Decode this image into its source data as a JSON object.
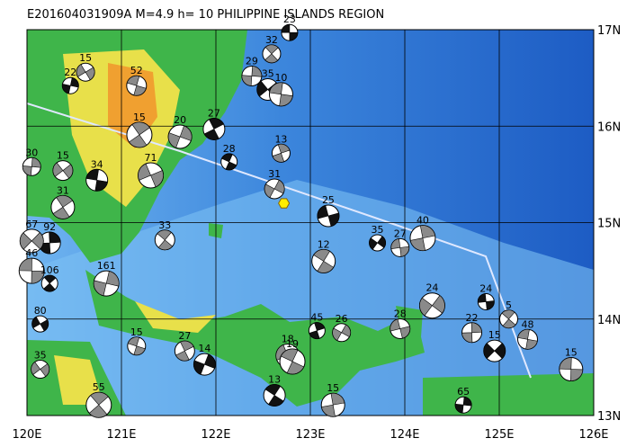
{
  "title": "E201604031909A  M=4.9  h= 10  PHILIPPINE ISLANDS REGION",
  "lon_ticks": [
    {
      "value": 120,
      "label": "120E"
    },
    {
      "value": 121,
      "label": "121E"
    },
    {
      "value": 122,
      "label": "122E"
    },
    {
      "value": 123,
      "label": "123E"
    },
    {
      "value": 124,
      "label": "124E"
    },
    {
      "value": 125,
      "label": "125E"
    },
    {
      "value": 126,
      "label": "126E"
    }
  ],
  "lat_ticks": [
    {
      "value": 17,
      "label": "17N"
    },
    {
      "value": 16,
      "label": "16N"
    },
    {
      "value": 15,
      "label": "15N"
    },
    {
      "value": 14,
      "label": "14N"
    },
    {
      "value": 13,
      "label": "13N"
    }
  ],
  "xlim": [
    120,
    126
  ],
  "ylim": [
    13,
    17
  ],
  "epicenter": {
    "lon": 122.72,
    "lat": 15.2
  },
  "events": [
    {
      "label": "23",
      "lon": 122.78,
      "lat": 16.97
    },
    {
      "label": "32",
      "lon": 122.59,
      "lat": 16.75
    },
    {
      "label": "29",
      "lon": 122.38,
      "lat": 16.52
    },
    {
      "label": "35",
      "lon": 122.55,
      "lat": 16.38
    },
    {
      "label": "10",
      "lon": 122.69,
      "lat": 16.33
    },
    {
      "label": "15",
      "lon": 121.19,
      "lat": 15.91
    },
    {
      "label": "22",
      "lon": 120.46,
      "lat": 16.42
    },
    {
      "label": "15",
      "lon": 120.62,
      "lat": 16.56
    },
    {
      "label": "52",
      "lon": 121.16,
      "lat": 16.42
    },
    {
      "label": "27",
      "lon": 121.98,
      "lat": 15.97
    },
    {
      "label": "20",
      "lon": 121.62,
      "lat": 15.89
    },
    {
      "label": "71",
      "lon": 121.31,
      "lat": 15.49
    },
    {
      "label": "28",
      "lon": 122.14,
      "lat": 15.63
    },
    {
      "label": "13",
      "lon": 122.69,
      "lat": 15.72
    },
    {
      "label": "31",
      "lon": 122.62,
      "lat": 15.35
    },
    {
      "label": "25",
      "lon": 123.19,
      "lat": 15.07
    },
    {
      "label": "12",
      "lon": 123.14,
      "lat": 14.6
    },
    {
      "label": "40",
      "lon": 124.19,
      "lat": 14.84
    },
    {
      "label": "35",
      "lon": 123.71,
      "lat": 14.79
    },
    {
      "label": "27",
      "lon": 123.95,
      "lat": 14.74
    },
    {
      "label": "33",
      "lon": 121.46,
      "lat": 14.82
    },
    {
      "label": "92",
      "lon": 120.24,
      "lat": 14.79
    },
    {
      "label": "67",
      "lon": 120.05,
      "lat": 14.81
    },
    {
      "label": "46",
      "lon": 120.05,
      "lat": 14.5
    },
    {
      "label": "106",
      "lon": 120.24,
      "lat": 14.37
    },
    {
      "label": "30",
      "lon": 120.05,
      "lat": 15.58
    },
    {
      "label": "15",
      "lon": 120.38,
      "lat": 15.54
    },
    {
      "label": "34",
      "lon": 120.74,
      "lat": 15.44
    },
    {
      "label": "31",
      "lon": 120.38,
      "lat": 15.16
    },
    {
      "label": "161",
      "lon": 120.84,
      "lat": 14.37
    },
    {
      "label": "80",
      "lon": 120.14,
      "lat": 13.95
    },
    {
      "label": "15",
      "lon": 121.16,
      "lat": 13.72
    },
    {
      "label": "27",
      "lon": 121.67,
      "lat": 13.67
    },
    {
      "label": "14",
      "lon": 121.88,
      "lat": 13.53
    },
    {
      "label": "18",
      "lon": 122.76,
      "lat": 13.62
    },
    {
      "label": "19",
      "lon": 122.81,
      "lat": 13.56
    },
    {
      "label": "45",
      "lon": 123.07,
      "lat": 13.88
    },
    {
      "label": "26",
      "lon": 123.33,
      "lat": 13.86
    },
    {
      "label": "28",
      "lon": 123.95,
      "lat": 13.9
    },
    {
      "label": "13",
      "lon": 122.62,
      "lat": 13.21
    },
    {
      "label": "15",
      "lon": 123.24,
      "lat": 13.11
    },
    {
      "label": "24",
      "lon": 124.29,
      "lat": 14.14
    },
    {
      "label": "24",
      "lon": 124.86,
      "lat": 14.18
    },
    {
      "label": "5",
      "lon": 125.1,
      "lat": 14.0
    },
    {
      "label": "22",
      "lon": 124.71,
      "lat": 13.86
    },
    {
      "label": "15",
      "lon": 124.95,
      "lat": 13.67
    },
    {
      "label": "15",
      "lon": 125.76,
      "lat": 13.48
    },
    {
      "label": "55",
      "lon": 120.76,
      "lat": 13.11
    },
    {
      "label": "65",
      "lon": 124.62,
      "lat": 13.11
    },
    {
      "label": "35",
      "lon": 120.14,
      "lat": 13.48
    },
    {
      "label": "48",
      "lon": 125.3,
      "lat": 13.79
    }
  ]
}
